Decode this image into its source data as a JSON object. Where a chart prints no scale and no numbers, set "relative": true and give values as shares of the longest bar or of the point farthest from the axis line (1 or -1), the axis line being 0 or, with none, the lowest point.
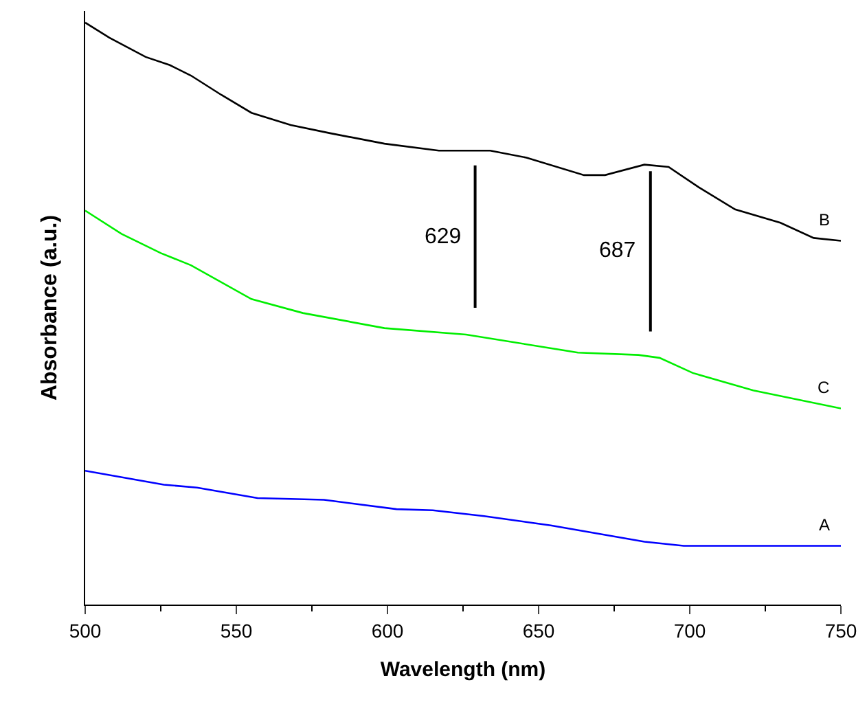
{
  "chart_data": {
    "type": "line",
    "relative": true,
    "xlabel": "Wavelength (nm)",
    "ylabel": "Absorbance (a.u.)",
    "xlim": [
      500,
      750
    ],
    "xticks": [
      500,
      550,
      600,
      650,
      700,
      750
    ],
    "legend": false,
    "marker": "none",
    "line_style": "solid",
    "series": [
      {
        "name": "B",
        "color": "#000000",
        "x": [
          500,
          508,
          520,
          528,
          535,
          545,
          555,
          568,
          581,
          599,
          617,
          634,
          646,
          665,
          672,
          685,
          693,
          703,
          715,
          730,
          741,
          750
        ],
        "values": [
          1.0,
          0.974,
          0.941,
          0.927,
          0.909,
          0.876,
          0.845,
          0.824,
          0.81,
          0.792,
          0.78,
          0.78,
          0.768,
          0.738,
          0.738,
          0.756,
          0.752,
          0.717,
          0.679,
          0.656,
          0.63,
          0.625
        ]
      },
      {
        "name": "C",
        "color": "#00ee00",
        "x": [
          500,
          512,
          525,
          535,
          555,
          572,
          599,
          626,
          663,
          683,
          690,
          701,
          721,
          750
        ],
        "values": [
          0.677,
          0.637,
          0.604,
          0.583,
          0.525,
          0.501,
          0.475,
          0.464,
          0.433,
          0.429,
          0.424,
          0.398,
          0.368,
          0.337
        ]
      },
      {
        "name": "A",
        "color": "#0000ff",
        "x": [
          500,
          526,
          537,
          557,
          579,
          603,
          615,
          632,
          654,
          685,
          698,
          750
        ],
        "values": [
          0.23,
          0.206,
          0.201,
          0.183,
          0.18,
          0.164,
          0.162,
          0.152,
          0.136,
          0.108,
          0.101,
          0.101
        ]
      }
    ],
    "ref_lines": [
      {
        "axis": "x",
        "value": 629,
        "label": "629",
        "color": "#000000"
      },
      {
        "axis": "x",
        "value": 687,
        "label": "687",
        "color": "#000000"
      }
    ]
  }
}
